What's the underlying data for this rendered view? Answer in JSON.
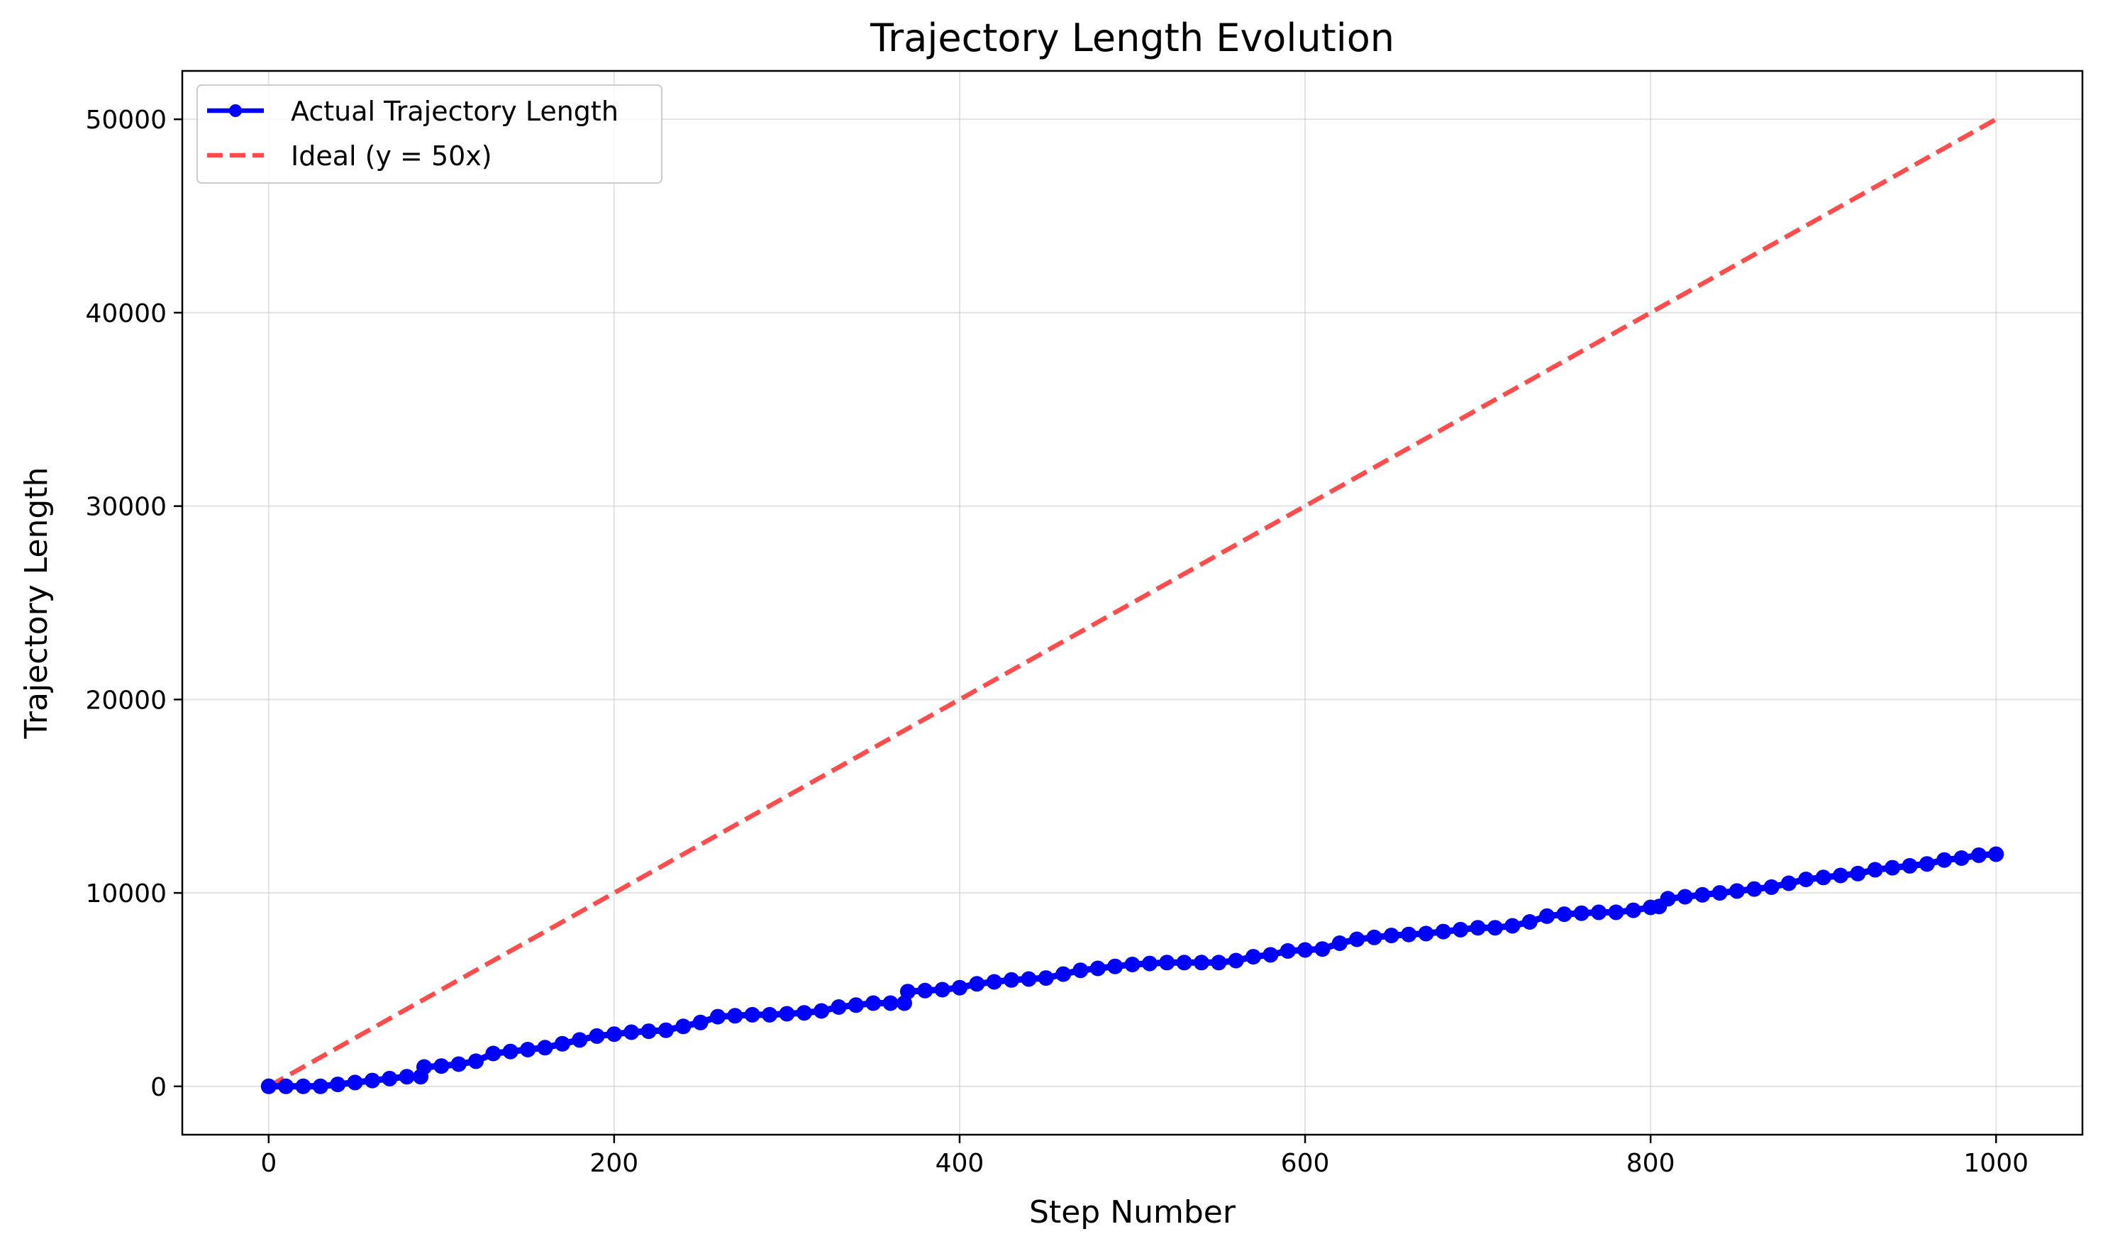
{
  "chart_data": {
    "type": "line",
    "title": "Trajectory Length Evolution",
    "xlabel": "Step Number",
    "ylabel": "Trajectory Length",
    "xlim": [
      -50,
      1050
    ],
    "ylim": [
      -2500,
      52500
    ],
    "xticks": [
      0,
      200,
      400,
      600,
      800,
      1000
    ],
    "yticks": [
      0,
      10000,
      20000,
      30000,
      40000,
      50000
    ],
    "grid": true,
    "legend_position": "top-left",
    "series": [
      {
        "name": "Actual Trajectory Length",
        "color": "#0000ff",
        "style": "solid-with-markers",
        "x": [
          0,
          10,
          20,
          30,
          40,
          50,
          60,
          70,
          80,
          88,
          90,
          100,
          110,
          120,
          130,
          140,
          150,
          160,
          170,
          180,
          190,
          200,
          210,
          220,
          230,
          240,
          250,
          260,
          270,
          280,
          290,
          300,
          310,
          320,
          330,
          340,
          350,
          360,
          368,
          370,
          380,
          390,
          400,
          410,
          420,
          430,
          440,
          450,
          460,
          470,
          480,
          490,
          500,
          510,
          520,
          530,
          540,
          550,
          560,
          570,
          580,
          590,
          600,
          610,
          620,
          630,
          640,
          650,
          660,
          670,
          680,
          690,
          700,
          710,
          720,
          730,
          740,
          750,
          760,
          770,
          780,
          790,
          800,
          805,
          810,
          820,
          830,
          840,
          850,
          860,
          870,
          880,
          890,
          900,
          910,
          920,
          930,
          940,
          950,
          960,
          970,
          980,
          990,
          1000
        ],
        "y": [
          0,
          0,
          0,
          0,
          100,
          200,
          300,
          400,
          500,
          500,
          1000,
          1050,
          1150,
          1300,
          1700,
          1800,
          1900,
          2000,
          2200,
          2400,
          2600,
          2700,
          2800,
          2850,
          2900,
          3100,
          3300,
          3600,
          3650,
          3700,
          3700,
          3750,
          3800,
          3900,
          4100,
          4200,
          4300,
          4300,
          4300,
          4900,
          4950,
          5000,
          5100,
          5300,
          5400,
          5500,
          5550,
          5600,
          5800,
          6000,
          6100,
          6200,
          6300,
          6350,
          6400,
          6400,
          6400,
          6400,
          6500,
          6700,
          6800,
          7000,
          7050,
          7100,
          7400,
          7600,
          7700,
          7800,
          7850,
          7900,
          8000,
          8100,
          8200,
          8200,
          8300,
          8500,
          8800,
          8900,
          8950,
          9000,
          9000,
          9100,
          9250,
          9300,
          9700,
          9800,
          9900,
          10000,
          10100,
          10200,
          10300,
          10500,
          10700,
          10800,
          10900,
          11000,
          11200,
          11300,
          11400,
          11500,
          11700,
          11800,
          11950,
          12000
        ]
      },
      {
        "name": "Ideal (y = 50x)",
        "color": "#ff4d4d",
        "style": "dashed",
        "x": [
          0,
          1000
        ],
        "y": [
          0,
          50000
        ]
      }
    ]
  }
}
